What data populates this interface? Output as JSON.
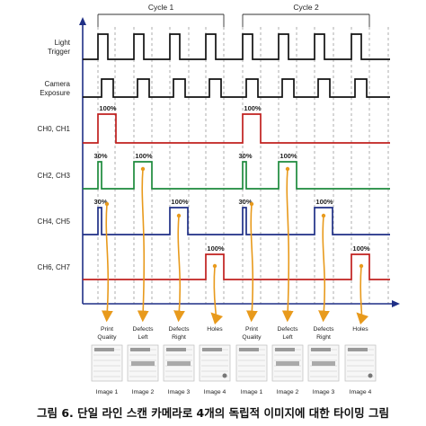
{
  "cycles": [
    "Cycle 1",
    "Cycle 2"
  ],
  "signals": [
    {
      "id": "light",
      "label_lines": [
        "Light",
        "Trigger"
      ],
      "color": "#111111"
    },
    {
      "id": "camera",
      "label_lines": [
        "Camera",
        "Exposure"
      ],
      "color": "#111111"
    },
    {
      "id": "ch01",
      "label_lines": [
        "CH0, CH1"
      ],
      "color": "#c0201e"
    },
    {
      "id": "ch23",
      "label_lines": [
        "CH2, CH3"
      ],
      "color": "#1d8a3c"
    },
    {
      "id": "ch45",
      "label_lines": [
        "CH4, CH5"
      ],
      "color": "#1f2f86"
    },
    {
      "id": "ch67",
      "label_lines": [
        "CH6, CH7"
      ],
      "color": "#c0201e"
    }
  ],
  "pulse_labels": {
    "ch01": [
      "100%",
      "100%"
    ],
    "ch23": [
      "30%",
      "100%",
      "30%",
      "100%"
    ],
    "ch45": [
      "30%",
      "100%",
      "30%",
      "100%"
    ],
    "ch67": [
      "100%",
      "100%"
    ]
  },
  "outputs": [
    {
      "label_lines": [
        "Print",
        "Quality"
      ],
      "image": "Image 1"
    },
    {
      "label_lines": [
        "Defects",
        "Left"
      ],
      "image": "Image 2"
    },
    {
      "label_lines": [
        "Defects",
        "Right"
      ],
      "image": "Image 3"
    },
    {
      "label_lines": [
        "Holes"
      ],
      "image": "Image 4"
    },
    {
      "label_lines": [
        "Print",
        "Quality"
      ],
      "image": "Image 1"
    },
    {
      "label_lines": [
        "Defects",
        "Left"
      ],
      "image": "Image 2"
    },
    {
      "label_lines": [
        "Defects",
        "Right"
      ],
      "image": "Image 3"
    },
    {
      "label_lines": [
        "Holes"
      ],
      "image": "Image 4"
    }
  ],
  "caption": "그림 6. 단일 라인 스캔 카메라로 4개의 독립적 이미지에 대한 타이밍 그림",
  "colors": {
    "arrow": "#e89a1c",
    "axis": "#1f2f86",
    "grid": "#9a9a9a"
  }
}
